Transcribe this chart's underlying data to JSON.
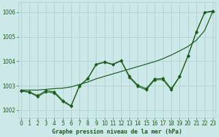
{
  "title": "Graphe pression niveau de la mer (hPa)",
  "bg_color": "#cce8e8",
  "line_color": "#1a5c1a",
  "grid_color": "#aacccc",
  "ylim": [
    1001.7,
    1006.4
  ],
  "xlim": [
    -0.3,
    23.3
  ],
  "yticks": [
    1002,
    1003,
    1004,
    1005,
    1006
  ],
  "xticks": [
    0,
    1,
    2,
    3,
    4,
    5,
    6,
    7,
    8,
    9,
    10,
    11,
    12,
    13,
    14,
    15,
    16,
    17,
    18,
    19,
    20,
    21,
    22,
    23
  ],
  "line_jagged": [
    1002.8,
    1002.75,
    1002.6,
    1002.8,
    1002.75,
    1002.4,
    1002.18,
    1003.0,
    1003.3,
    1003.88,
    1003.97,
    1003.88,
    1004.03,
    1003.38,
    1003.02,
    1002.88,
    1003.28,
    1003.3,
    1002.88,
    1003.38,
    1004.22,
    1005.2,
    1006.0,
    1006.05
  ],
  "line_smooth": [
    1002.82,
    1002.82,
    1002.82,
    1002.85,
    1002.88,
    1002.9,
    1002.95,
    1003.05,
    1003.15,
    1003.28,
    1003.38,
    1003.48,
    1003.58,
    1003.68,
    1003.78,
    1003.88,
    1003.98,
    1004.1,
    1004.25,
    1004.42,
    1004.6,
    1004.85,
    1005.25,
    1006.05
  ],
  "title_fontsize": 6.0,
  "tick_fontsize": 5.5
}
